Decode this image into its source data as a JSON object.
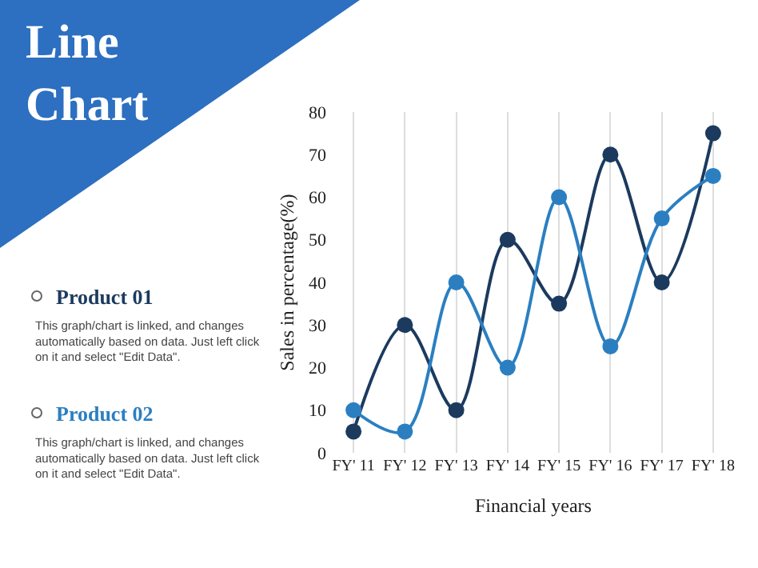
{
  "chart_data": {
    "type": "line",
    "title": "Line Chart",
    "xlabel": "Financial years",
    "ylabel": "Sales in percentage(%)",
    "categories": [
      "FY' 11",
      "FY' 12",
      "FY' 13",
      "FY' 14",
      "FY' 15",
      "FY' 16",
      "FY' 17",
      "FY' 18"
    ],
    "series": [
      {
        "name": "Product 01",
        "color": "#1b3a5e",
        "values": [
          5,
          30,
          10,
          50,
          35,
          70,
          40,
          75
        ]
      },
      {
        "name": "Product 02",
        "color": "#2b7fc1",
        "values": [
          10,
          5,
          40,
          20,
          60,
          25,
          55,
          65
        ]
      }
    ],
    "ylim": [
      0,
      80
    ],
    "yticks": [
      0,
      10,
      20,
      30,
      40,
      50,
      60,
      70,
      80
    ],
    "grid": "x",
    "marker": "circle",
    "line_style": "solid",
    "annotations": [
      "This graph/chart is linked, and changes automatically based on data. Just left click on it and select \"Edit Data\".",
      "This graph/chart is linked, and changes automatically based on data. Just left click on it and select \"Edit Data\"."
    ]
  }
}
